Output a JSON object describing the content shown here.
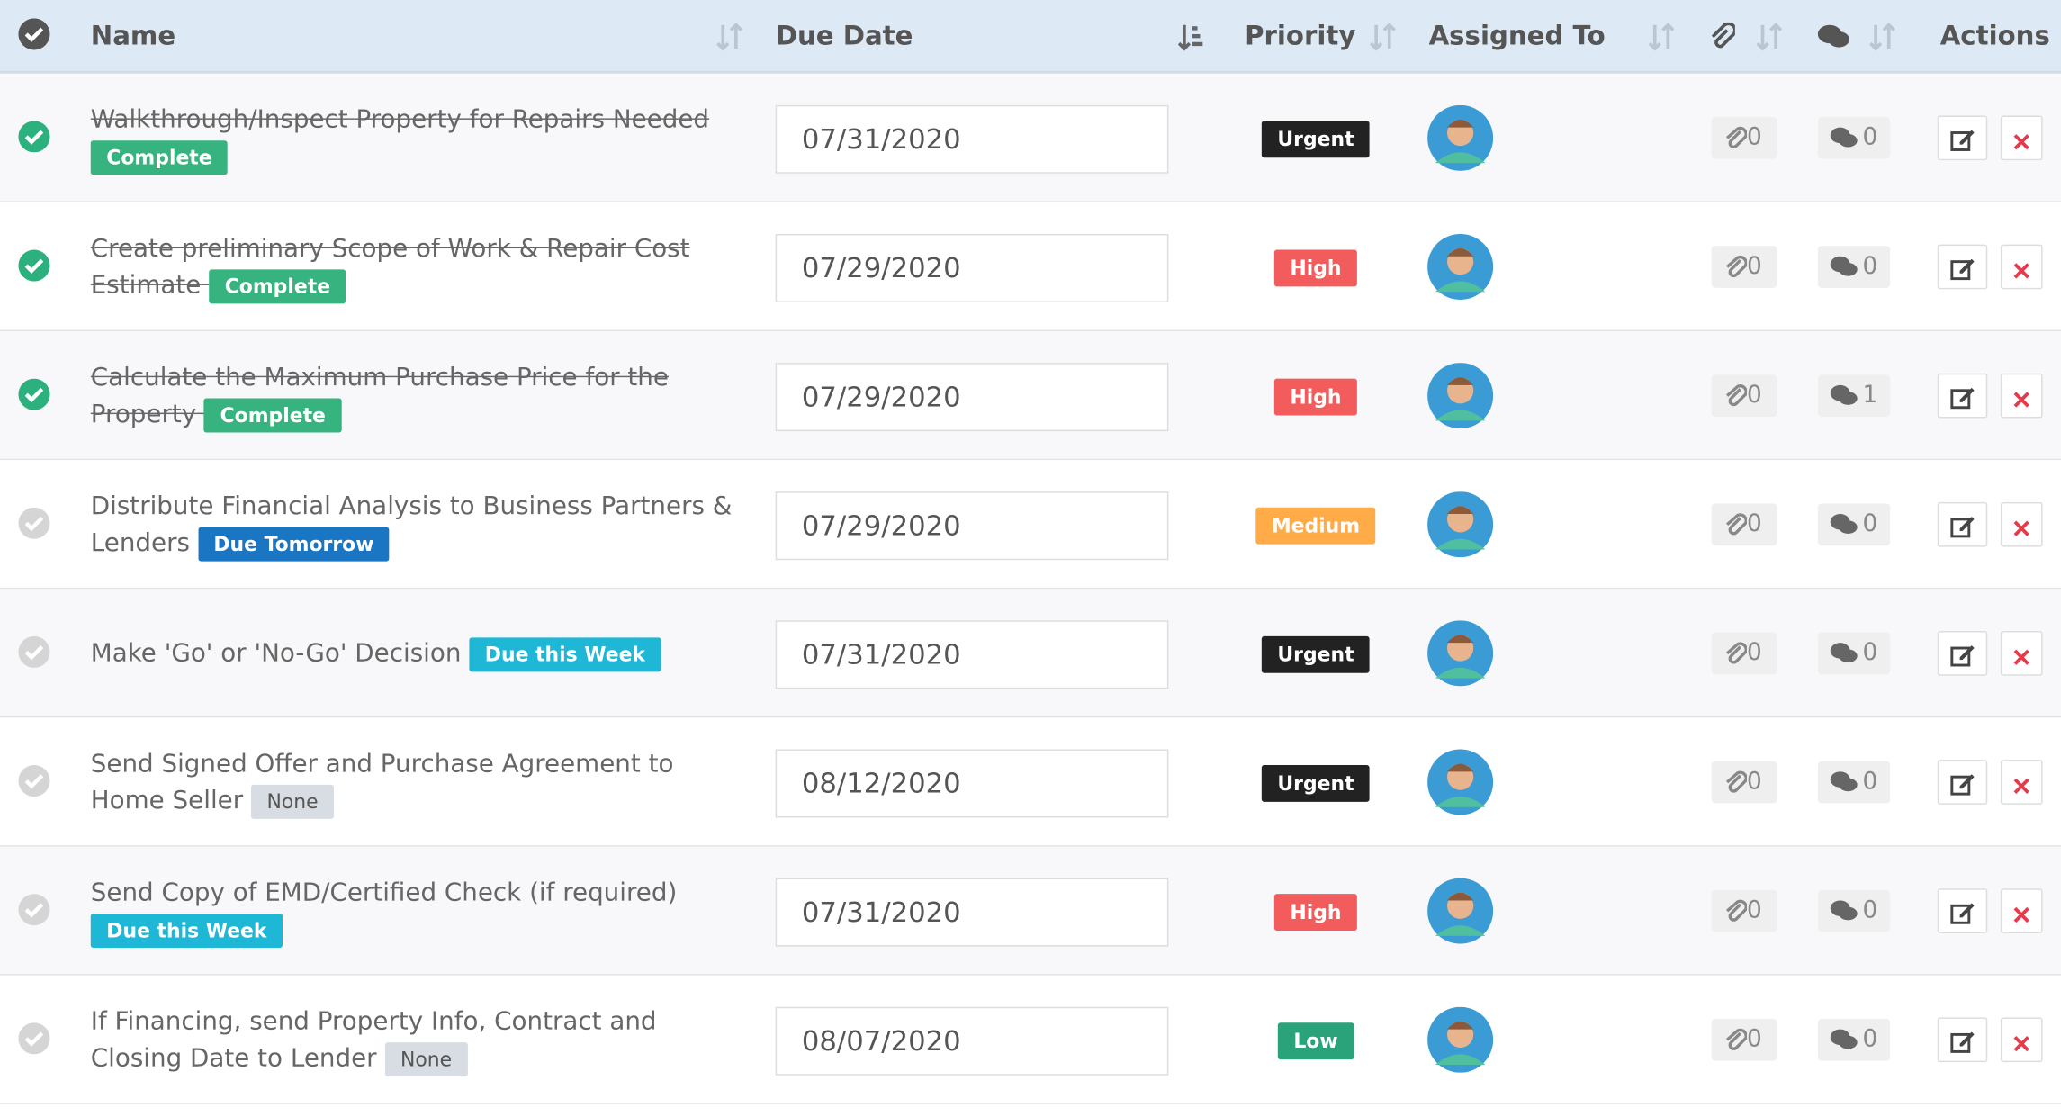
{
  "header": {
    "columns": [
      "Name",
      "Due Date",
      "Priority",
      "Assigned To",
      "Actions"
    ]
  },
  "rows": [
    {
      "name": "Walkthrough/Inspect Property for Repairs Needed",
      "badge": "Complete",
      "badge_color": "#36b37e",
      "complete": true,
      "due_date": "07/31/2020",
      "priority": "Urgent",
      "priority_color": "#222222",
      "attachments": 0,
      "comments": 0
    },
    {
      "name": "Create preliminary Scope of Work & Repair Cost Estimate",
      "badge": "Complete",
      "badge_color": "#36b37e",
      "complete": true,
      "due_date": "07/29/2020",
      "priority": "High",
      "priority_color": "#f25c5c",
      "attachments": 0,
      "comments": 0
    },
    {
      "name": "Calculate the Maximum Purchase Price for the Property",
      "badge": "Complete",
      "badge_color": "#36b37e",
      "complete": true,
      "due_date": "07/29/2020",
      "priority": "High",
      "priority_color": "#f25c5c",
      "attachments": 0,
      "comments": 1
    },
    {
      "name": "Distribute Financial Analysis to Business Partners & Lenders",
      "badge": "Due Tomorrow",
      "badge_color": "#1a75c2",
      "complete": false,
      "due_date": "07/29/2020",
      "priority": "Medium",
      "priority_color": "#ffab48",
      "attachments": 0,
      "comments": 0
    },
    {
      "name": "Make 'Go' or 'No-Go' Decision",
      "badge": "Due this Week",
      "badge_color": "#1eb7d6",
      "complete": false,
      "due_date": "07/31/2020",
      "priority": "Urgent",
      "priority_color": "#222222",
      "attachments": 0,
      "comments": 0
    },
    {
      "name": "Send Signed Offer and Purchase Agreement to Home Seller",
      "badge": "None",
      "badge_color": "#d8dde3",
      "complete": false,
      "due_date": "08/12/2020",
      "priority": "Urgent",
      "priority_color": "#222222",
      "attachments": 0,
      "comments": 0
    },
    {
      "name": "Send Copy of EMD/Certified Check (if required)",
      "badge": "Due this Week",
      "badge_color": "#1eb7d6",
      "complete": false,
      "due_date": "07/31/2020",
      "priority": "High",
      "priority_color": "#f25c5c",
      "attachments": 0,
      "comments": 0
    },
    {
      "name": "If Financing, send Property Info, Contract and Closing Date to Lender",
      "badge": "None",
      "badge_color": "#d8dde3",
      "complete": false,
      "due_date": "08/07/2020",
      "priority": "Low",
      "priority_color": "#2aa37a",
      "attachments": 0,
      "comments": 0
    }
  ]
}
